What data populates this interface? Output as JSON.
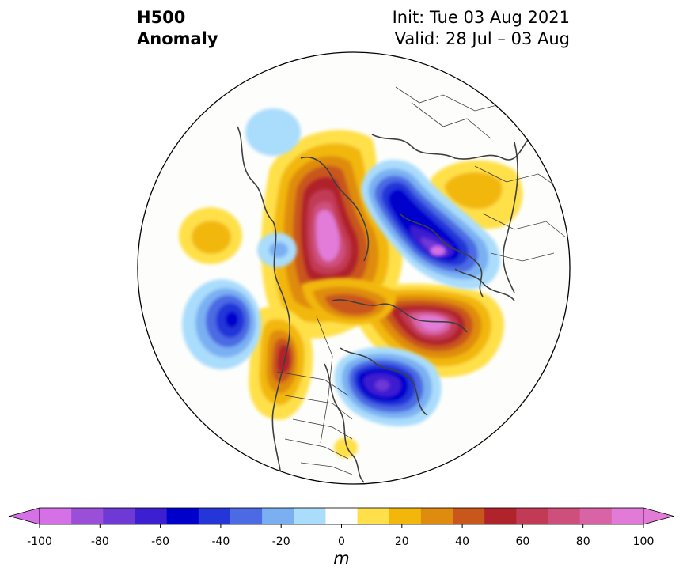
{
  "title": {
    "line1": "H500",
    "line2": "Anomaly",
    "init": "Init: Tue 03 Aug 2021",
    "valid": "Valid: 28 Jul – 03 Aug"
  },
  "colorbar": {
    "unit": "m",
    "ticks": [
      "-100",
      "-80",
      "-60",
      "-40",
      "-20",
      "0",
      "20",
      "40",
      "60",
      "80",
      "100"
    ],
    "levels": [
      -100,
      -90,
      -80,
      -70,
      -60,
      -50,
      -40,
      -30,
      -20,
      -10,
      10,
      20,
      30,
      40,
      50,
      60,
      70,
      80,
      90,
      100
    ],
    "colors": [
      "#d670e6",
      "#9b4fd9",
      "#6f39d6",
      "#3c1fd0",
      "#0000cd",
      "#2436d8",
      "#4b6ae3",
      "#7ab0f2",
      "#aadcfc",
      "#ffffff",
      "#ffe04a",
      "#f2b70a",
      "#df8c0e",
      "#c9561a",
      "#b0232a",
      "#c23a55",
      "#ce4f7b",
      "#d864a6",
      "#e27bd8"
    ],
    "extend_low_color": "#d670e6",
    "extend_high_color": "#e27bd8"
  },
  "map": {
    "projection": "north-polar-stereographic",
    "features": [
      "coastlines",
      "country-borders",
      "us-state-borders"
    ],
    "positive_anomaly_centers": [
      "greenland",
      "northeast-russia",
      "western-canada",
      "north-pacific",
      "southeast-us"
    ],
    "negative_anomaly_centers": [
      "barents-sea-scandinavia",
      "hudson-bay-northeast-canada",
      "gulf-of-alaska",
      "bering-sea",
      "western-europe-coast"
    ]
  }
}
